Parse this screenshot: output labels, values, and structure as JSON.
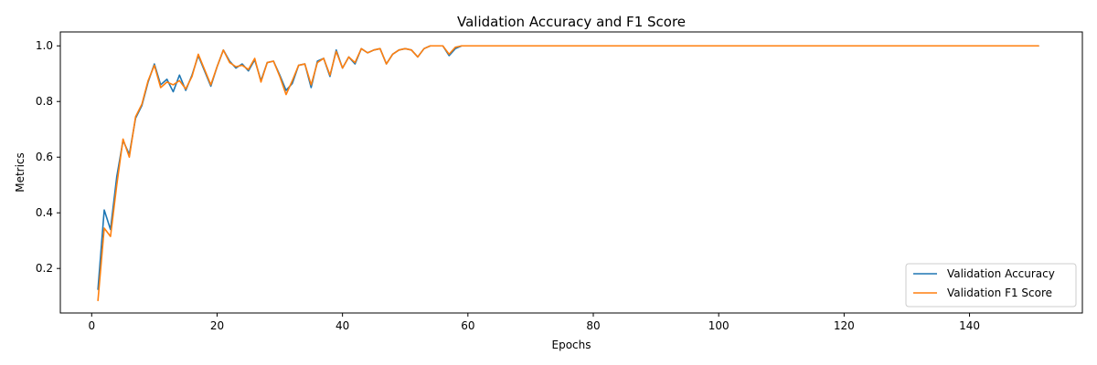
{
  "chart_data": {
    "type": "line",
    "title": "Validation Accuracy and F1 Score",
    "xlabel": "Epochs",
    "ylabel": "Metrics",
    "xlim": [
      -5,
      158
    ],
    "ylim": [
      0.04,
      1.05
    ],
    "xticks": [
      0,
      20,
      40,
      60,
      80,
      100,
      120,
      140
    ],
    "yticks": [
      0.2,
      0.4,
      0.6,
      0.8,
      1.0
    ],
    "ytick_labels": [
      "0.2",
      "0.4",
      "0.6",
      "0.8",
      "1.0"
    ],
    "grid": false,
    "legend_position": "lower-right",
    "x": [
      1,
      2,
      3,
      4,
      5,
      6,
      7,
      8,
      9,
      10,
      11,
      12,
      13,
      14,
      15,
      16,
      17,
      18,
      19,
      20,
      21,
      22,
      23,
      24,
      25,
      26,
      27,
      28,
      29,
      30,
      31,
      32,
      33,
      34,
      35,
      36,
      37,
      38,
      39,
      40,
      41,
      42,
      43,
      44,
      45,
      46,
      47,
      48,
      49,
      50,
      51,
      52,
      53,
      54,
      55,
      56,
      57,
      58,
      59,
      60,
      61,
      62,
      63,
      64,
      65,
      66,
      67,
      68,
      69,
      70,
      71,
      72,
      73,
      74,
      75,
      76,
      77,
      78,
      79,
      80,
      81,
      82,
      83,
      84,
      85,
      86,
      87,
      88,
      89,
      90,
      91,
      92,
      93,
      94,
      95,
      96,
      97,
      98,
      99,
      100,
      101,
      102,
      103,
      104,
      105,
      106,
      107,
      108,
      109,
      110,
      111,
      112,
      113,
      114,
      115,
      116,
      117,
      118,
      119,
      120,
      121,
      122,
      123,
      124,
      125,
      126,
      127,
      128,
      129,
      130,
      131,
      132,
      133,
      134,
      135,
      136,
      137,
      138,
      139,
      140,
      141,
      142,
      143,
      144,
      145,
      146,
      147,
      148,
      149,
      150,
      151
    ],
    "series": [
      {
        "name": "Validation Accuracy",
        "color": "#1f77b4",
        "values": [
          0.125,
          0.41,
          0.34,
          0.53,
          0.66,
          0.61,
          0.74,
          0.785,
          0.87,
          0.935,
          0.86,
          0.88,
          0.835,
          0.895,
          0.84,
          0.895,
          0.965,
          0.91,
          0.855,
          0.925,
          0.985,
          0.945,
          0.92,
          0.935,
          0.91,
          0.95,
          0.875,
          0.94,
          0.945,
          0.895,
          0.84,
          0.865,
          0.93,
          0.935,
          0.85,
          0.945,
          0.955,
          0.89,
          0.985,
          0.92,
          0.96,
          0.935,
          0.99,
          0.975,
          0.985,
          0.99,
          0.935,
          0.97,
          0.985,
          0.99,
          0.985,
          0.96,
          0.99,
          1.0,
          1.0,
          1.0,
          0.965,
          0.99,
          1.0,
          1.0,
          1.0,
          1.0,
          1.0,
          1.0,
          1.0,
          1.0,
          1.0,
          1.0,
          1.0,
          1.0,
          1.0,
          1.0,
          1.0,
          1.0,
          1.0,
          1.0,
          1.0,
          1.0,
          1.0,
          1.0,
          1.0,
          1.0,
          1.0,
          1.0,
          1.0,
          1.0,
          1.0,
          1.0,
          1.0,
          1.0,
          1.0,
          1.0,
          1.0,
          1.0,
          1.0,
          1.0,
          1.0,
          1.0,
          1.0,
          1.0,
          1.0,
          1.0,
          1.0,
          1.0,
          1.0,
          1.0,
          1.0,
          1.0,
          1.0,
          1.0,
          1.0,
          1.0,
          1.0,
          1.0,
          1.0,
          1.0,
          1.0,
          1.0,
          1.0,
          1.0,
          1.0,
          1.0,
          1.0,
          1.0,
          1.0,
          1.0,
          1.0,
          1.0,
          1.0,
          1.0,
          1.0,
          1.0,
          1.0,
          1.0,
          1.0,
          1.0,
          1.0,
          1.0,
          1.0,
          1.0,
          1.0,
          1.0,
          1.0,
          1.0,
          1.0,
          1.0,
          1.0,
          1.0,
          1.0,
          1.0,
          1.0
        ]
      },
      {
        "name": "Validation F1 Score",
        "color": "#ff7f0e",
        "values": [
          0.085,
          0.345,
          0.315,
          0.5,
          0.665,
          0.6,
          0.745,
          0.79,
          0.875,
          0.93,
          0.85,
          0.87,
          0.86,
          0.875,
          0.845,
          0.89,
          0.97,
          0.915,
          0.86,
          0.925,
          0.985,
          0.94,
          0.925,
          0.93,
          0.915,
          0.955,
          0.87,
          0.94,
          0.945,
          0.89,
          0.825,
          0.875,
          0.93,
          0.935,
          0.86,
          0.94,
          0.955,
          0.895,
          0.98,
          0.92,
          0.96,
          0.94,
          0.99,
          0.975,
          0.985,
          0.99,
          0.935,
          0.97,
          0.985,
          0.99,
          0.985,
          0.96,
          0.99,
          1.0,
          1.0,
          1.0,
          0.97,
          0.995,
          1.0,
          1.0,
          1.0,
          1.0,
          1.0,
          1.0,
          1.0,
          1.0,
          1.0,
          1.0,
          1.0,
          1.0,
          1.0,
          1.0,
          1.0,
          1.0,
          1.0,
          1.0,
          1.0,
          1.0,
          1.0,
          1.0,
          1.0,
          1.0,
          1.0,
          1.0,
          1.0,
          1.0,
          1.0,
          1.0,
          1.0,
          1.0,
          1.0,
          1.0,
          1.0,
          1.0,
          1.0,
          1.0,
          1.0,
          1.0,
          1.0,
          1.0,
          1.0,
          1.0,
          1.0,
          1.0,
          1.0,
          1.0,
          1.0,
          1.0,
          1.0,
          1.0,
          1.0,
          1.0,
          1.0,
          1.0,
          1.0,
          1.0,
          1.0,
          1.0,
          1.0,
          1.0,
          1.0,
          1.0,
          1.0,
          1.0,
          1.0,
          1.0,
          1.0,
          1.0,
          1.0,
          1.0,
          1.0,
          1.0,
          1.0,
          1.0,
          1.0,
          1.0,
          1.0,
          1.0,
          1.0,
          1.0,
          1.0,
          1.0,
          1.0,
          1.0,
          1.0,
          1.0,
          1.0,
          1.0,
          1.0,
          1.0,
          1.0
        ]
      }
    ]
  }
}
